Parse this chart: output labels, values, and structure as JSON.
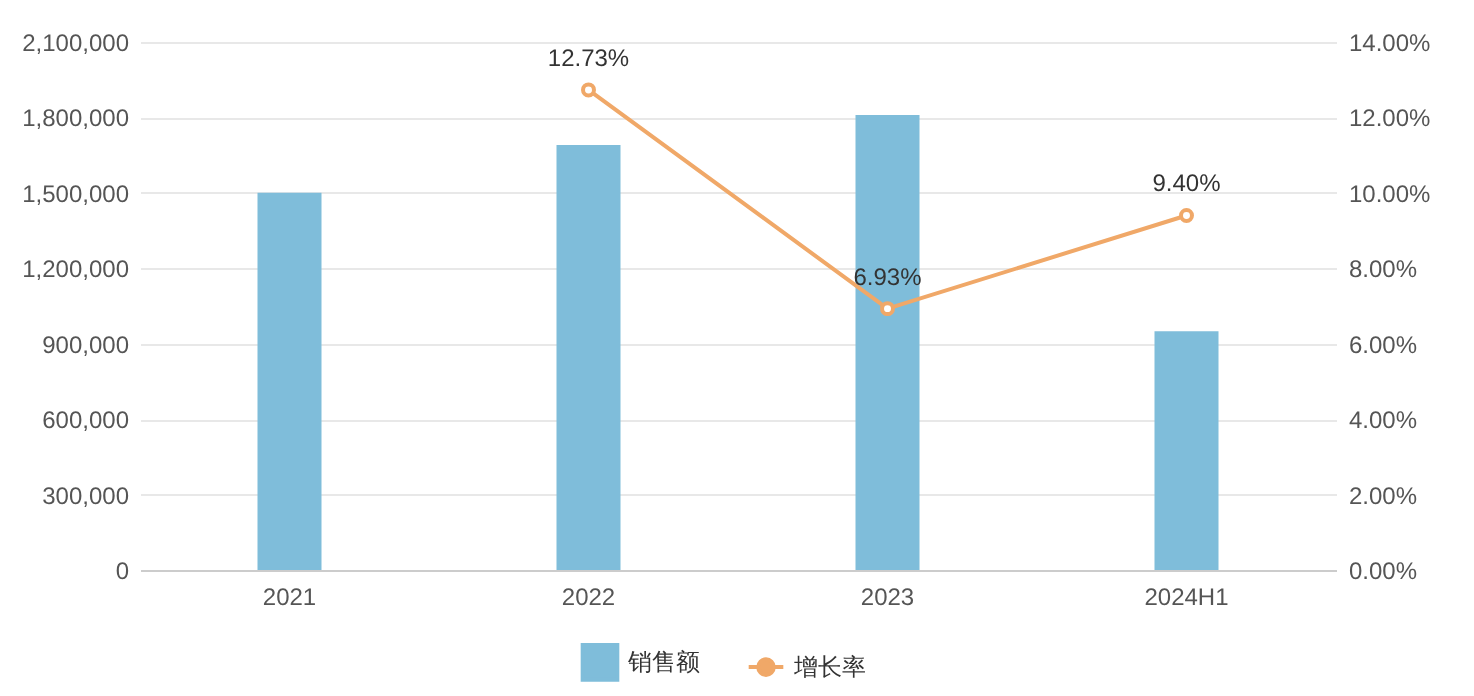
{
  "chart_data": {
    "type": "bar",
    "categories": [
      "2021",
      "2022",
      "2023",
      "2024H1"
    ],
    "series": [
      {
        "name": "销售额",
        "color": "#7fbdda",
        "values": [
          1500000,
          1690000,
          1810000,
          950000
        ]
      },
      {
        "name": "增长率",
        "type": "line",
        "axis": "y2",
        "color": "#f0a868",
        "values": [
          null,
          12.73,
          6.93,
          9.4
        ],
        "value_labels": [
          null,
          "12.73%",
          "6.93%",
          "9.40%"
        ]
      }
    ],
    "ylim": [
      0,
      2100000
    ],
    "yticks": [
      0,
      {
        "value": 300000,
        "label": "300,000"
      },
      {
        "value": 600000,
        "label": "600,000"
      },
      {
        "value": 900000,
        "label": "900,000"
      },
      {
        "value": 1200000,
        "label": "1,200,000"
      },
      {
        "value": 1500000,
        "label": "1,500,000"
      },
      {
        "value": 1800000,
        "label": "1,800,000"
      },
      {
        "value": 2100000,
        "label": "2,100,000"
      }
    ],
    "y2lim": [
      0,
      14
    ],
    "y2ticks": [
      {
        "value": 0,
        "label": "0.00%"
      },
      {
        "value": 2,
        "label": "2.00%"
      },
      {
        "value": 4,
        "label": "4.00%"
      },
      {
        "value": 6,
        "label": "6.00%"
      },
      {
        "value": 8,
        "label": "8.00%"
      },
      {
        "value": 10,
        "label": "10.00%"
      },
      {
        "value": 12,
        "label": "12.00%"
      },
      {
        "value": 14,
        "label": "14.00%"
      }
    ],
    "grid": "y",
    "legend": "bottom",
    "marker": "circle"
  }
}
